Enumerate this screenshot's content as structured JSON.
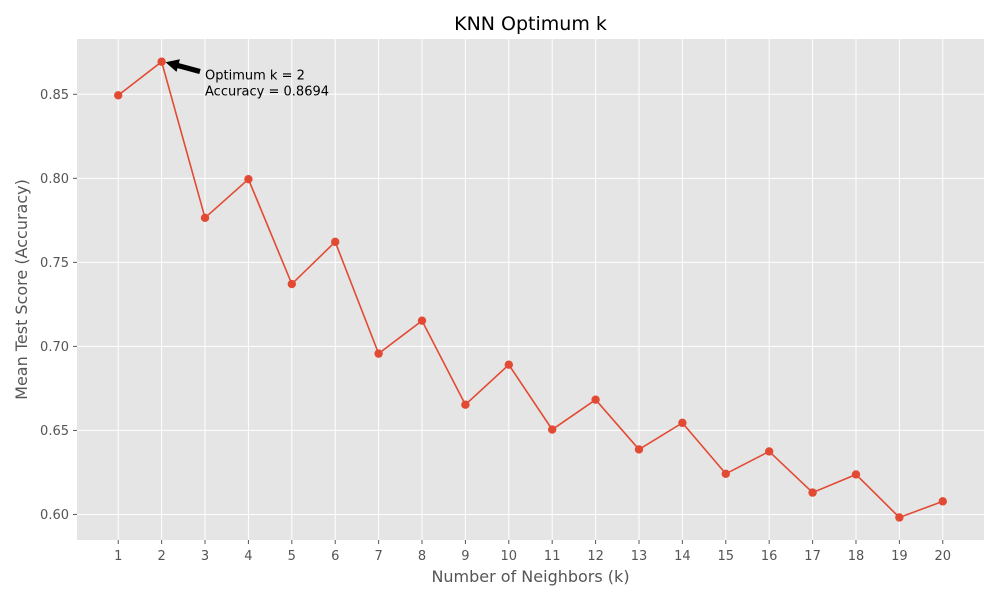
{
  "chart_data": {
    "type": "line",
    "title": "KNN Optimum k",
    "xlabel": "Number of Neighbors (k)",
    "ylabel": "Mean Test Score (Accuracy)",
    "x": [
      1,
      2,
      3,
      4,
      5,
      6,
      7,
      8,
      9,
      10,
      11,
      12,
      13,
      14,
      15,
      16,
      17,
      18,
      19,
      20
    ],
    "series": [
      {
        "values": [
          0.8494,
          0.8694,
          0.7765,
          0.7995,
          0.7371,
          0.7622,
          0.6957,
          0.7153,
          0.6653,
          0.6891,
          0.6505,
          0.6683,
          0.6387,
          0.6545,
          0.6242,
          0.6375,
          0.613,
          0.6238,
          0.5982,
          0.6078
        ],
        "color": "#E24A33"
      }
    ],
    "xlim": [
      0.05,
      20.95
    ],
    "ylim": [
      0.5848,
      0.8829
    ],
    "yticks": [
      0.6,
      0.65,
      0.7,
      0.75,
      0.8,
      0.85
    ],
    "ytick_labels": [
      "0.60",
      "0.65",
      "0.70",
      "0.75",
      "0.80",
      "0.85"
    ],
    "xtick_labels": [
      "1",
      "2",
      "3",
      "4",
      "5",
      "6",
      "7",
      "8",
      "9",
      "10",
      "11",
      "12",
      "13",
      "14",
      "15",
      "16",
      "17",
      "18",
      "19",
      "20"
    ],
    "grid": true,
    "style": "ggplot",
    "annotation": {
      "point_x": 2,
      "point_y": 0.8694,
      "text_x": 3,
      "text_y": 0.857,
      "lines": [
        "Optimum k = 2",
        "Accuracy = 0.8694"
      ]
    }
  }
}
